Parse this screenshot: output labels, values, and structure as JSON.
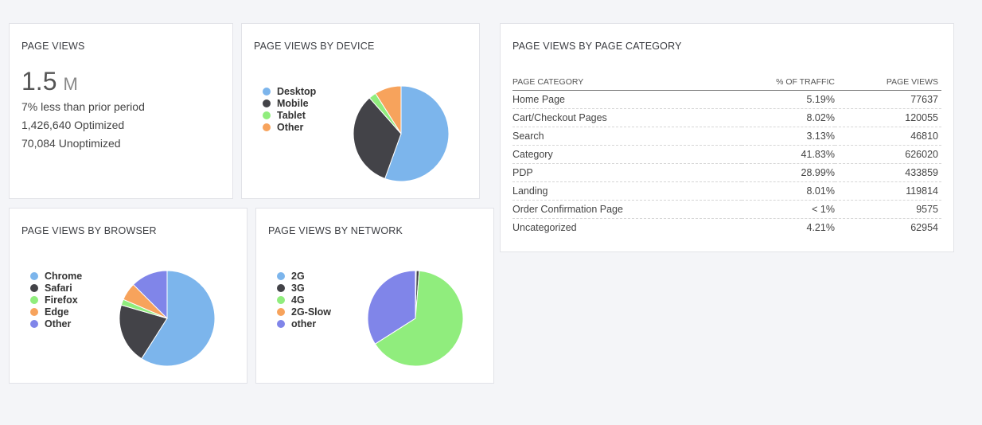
{
  "page_views_card": {
    "title": "PAGE VIEWS",
    "big_value": "1.5",
    "big_unit": "M",
    "lines": [
      "7% less than prior period",
      "1,426,640 Optimized",
      "70,084 Unoptimized"
    ]
  },
  "device_card": {
    "title": "PAGE VIEWS BY DEVICE",
    "chart_data": {
      "type": "pie",
      "categories": [
        "Desktop",
        "Mobile",
        "Tablet",
        "Other"
      ],
      "values": [
        55.5,
        33,
        2.5,
        9
      ],
      "colors": [
        "#7cb5ec",
        "#434348",
        "#90ed7d",
        "#f7a35c"
      ]
    }
  },
  "browser_card": {
    "title": "PAGE VIEWS BY BROWSER",
    "chart_data": {
      "type": "pie",
      "categories": [
        "Chrome",
        "Safari",
        "Firefox",
        "Edge",
        "Other"
      ],
      "values": [
        59,
        20.5,
        2,
        6,
        12.5
      ],
      "colors": [
        "#7cb5ec",
        "#434348",
        "#90ed7d",
        "#f7a35c",
        "#8085e9"
      ]
    }
  },
  "network_card": {
    "title": "PAGE VIEWS BY NETWORK",
    "chart_data": {
      "type": "pie",
      "categories": [
        "2G",
        "3G",
        "4G",
        "2G-Slow",
        "other"
      ],
      "values": [
        0.3,
        1,
        64.7,
        0,
        34
      ],
      "colors": [
        "#7cb5ec",
        "#434348",
        "#90ed7d",
        "#f7a35c",
        "#8085e9"
      ]
    }
  },
  "category_card": {
    "title": "PAGE VIEWS BY PAGE CATEGORY",
    "columns": [
      "PAGE CATEGORY",
      "% OF TRAFFIC",
      "PAGE VIEWS"
    ],
    "rows": [
      [
        "Home Page",
        "5.19%",
        "77637"
      ],
      [
        "Cart/Checkout Pages",
        "8.02%",
        "120055"
      ],
      [
        "Search",
        "3.13%",
        "46810"
      ],
      [
        "Category",
        "41.83%",
        "626020"
      ],
      [
        "PDP",
        "28.99%",
        "433859"
      ],
      [
        "Landing",
        "8.01%",
        "119814"
      ],
      [
        "Order Confirmation Page",
        "< 1%",
        "9575"
      ],
      [
        "Uncategorized",
        "4.21%",
        "62954"
      ]
    ]
  }
}
